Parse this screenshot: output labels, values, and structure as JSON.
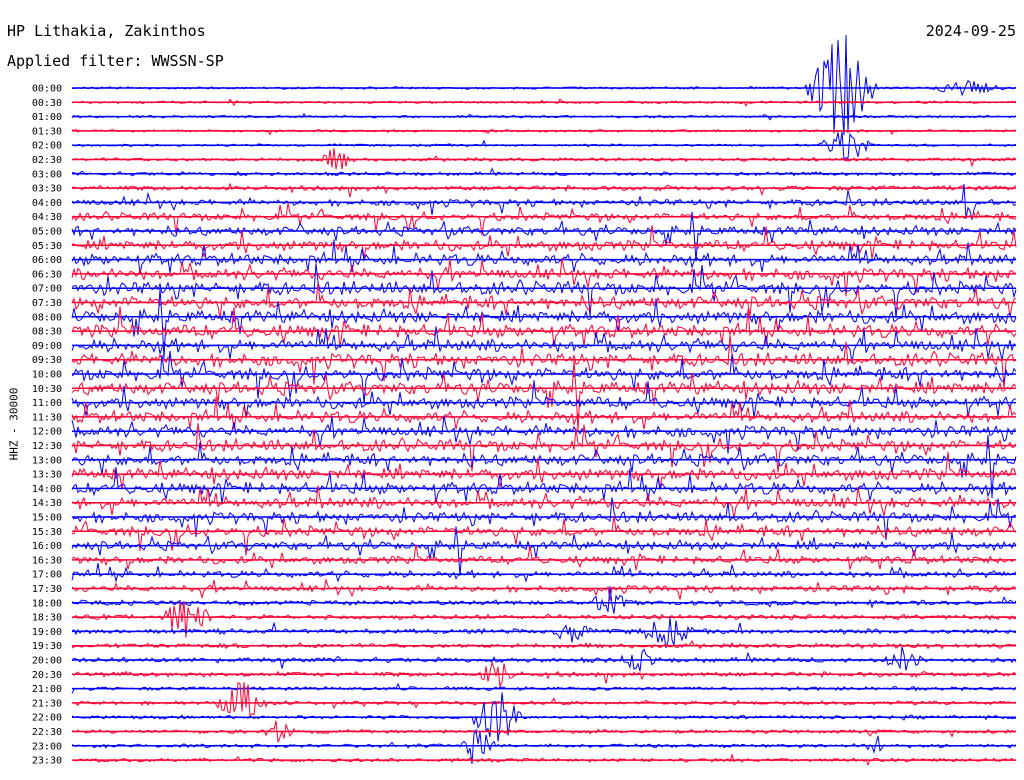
{
  "header": {
    "station": "HP Lithakia, Zakinthos",
    "date": "2024-09-25",
    "filter": "Applied filter: WWSSN-SP",
    "channel": "HHZ - 30000"
  },
  "colors": {
    "even_trace": "#0000ff",
    "odd_trace": "#ff0033",
    "background": "#ffffff",
    "text": "#000000"
  },
  "chart_data": {
    "type": "line",
    "title": "HP Lithakia, Zakinthos",
    "subtitle": "Applied filter: WWSSN-SP",
    "ylabel": "HHZ - 30000",
    "xlabel": "",
    "categories": [
      "00:00",
      "00:30",
      "01:00",
      "01:30",
      "02:00",
      "02:30",
      "03:00",
      "03:30",
      "04:00",
      "04:30",
      "05:00",
      "05:30",
      "06:00",
      "06:30",
      "07:00",
      "07:30",
      "08:00",
      "08:30",
      "09:00",
      "09:30",
      "10:00",
      "10:30",
      "11:00",
      "11:30",
      "12:00",
      "12:30",
      "13:00",
      "13:30",
      "14:00",
      "14:30",
      "15:00",
      "15:30",
      "16:00",
      "16:30",
      "17:00",
      "17:30",
      "18:00",
      "18:30",
      "19:00",
      "19:30",
      "20:00",
      "20:30",
      "21:00",
      "21:30",
      "22:00",
      "22:30",
      "23:00",
      "23:30"
    ],
    "noise_level": [
      1,
      1,
      1,
      1,
      1,
      2,
      2,
      3,
      4,
      5,
      6,
      7,
      8,
      8,
      9,
      9,
      9,
      9,
      9,
      9,
      9,
      9,
      8,
      8,
      8,
      8,
      8,
      8,
      8,
      8,
      7,
      7,
      6,
      5,
      4,
      4,
      3,
      3,
      3,
      3,
      3,
      3,
      2,
      2,
      2,
      2,
      2,
      2
    ],
    "events": [
      {
        "row": 0,
        "t": 0.815,
        "amp": 60,
        "dur": 0.04
      },
      {
        "row": 0,
        "t": 0.95,
        "amp": 8,
        "dur": 0.04
      },
      {
        "row": 4,
        "t": 0.82,
        "amp": 20,
        "dur": 0.03
      },
      {
        "row": 5,
        "t": 0.28,
        "amp": 12,
        "dur": 0.02
      },
      {
        "row": 8,
        "t": 0.95,
        "amp": 25,
        "dur": 0.01
      },
      {
        "row": 36,
        "t": 0.57,
        "amp": 15,
        "dur": 0.02
      },
      {
        "row": 37,
        "t": 0.12,
        "amp": 20,
        "dur": 0.03
      },
      {
        "row": 38,
        "t": 0.53,
        "amp": 14,
        "dur": 0.02
      },
      {
        "row": 38,
        "t": 0.63,
        "amp": 16,
        "dur": 0.03
      },
      {
        "row": 40,
        "t": 0.6,
        "amp": 12,
        "dur": 0.02
      },
      {
        "row": 40,
        "t": 0.88,
        "amp": 14,
        "dur": 0.02
      },
      {
        "row": 41,
        "t": 0.45,
        "amp": 15,
        "dur": 0.02
      },
      {
        "row": 43,
        "t": 0.18,
        "amp": 22,
        "dur": 0.03
      },
      {
        "row": 44,
        "t": 0.45,
        "amp": 30,
        "dur": 0.03
      },
      {
        "row": 45,
        "t": 0.22,
        "amp": 12,
        "dur": 0.02
      },
      {
        "row": 46,
        "t": 0.43,
        "amp": 25,
        "dur": 0.02
      },
      {
        "row": 46,
        "t": 0.85,
        "amp": 20,
        "dur": 0.01
      }
    ]
  }
}
